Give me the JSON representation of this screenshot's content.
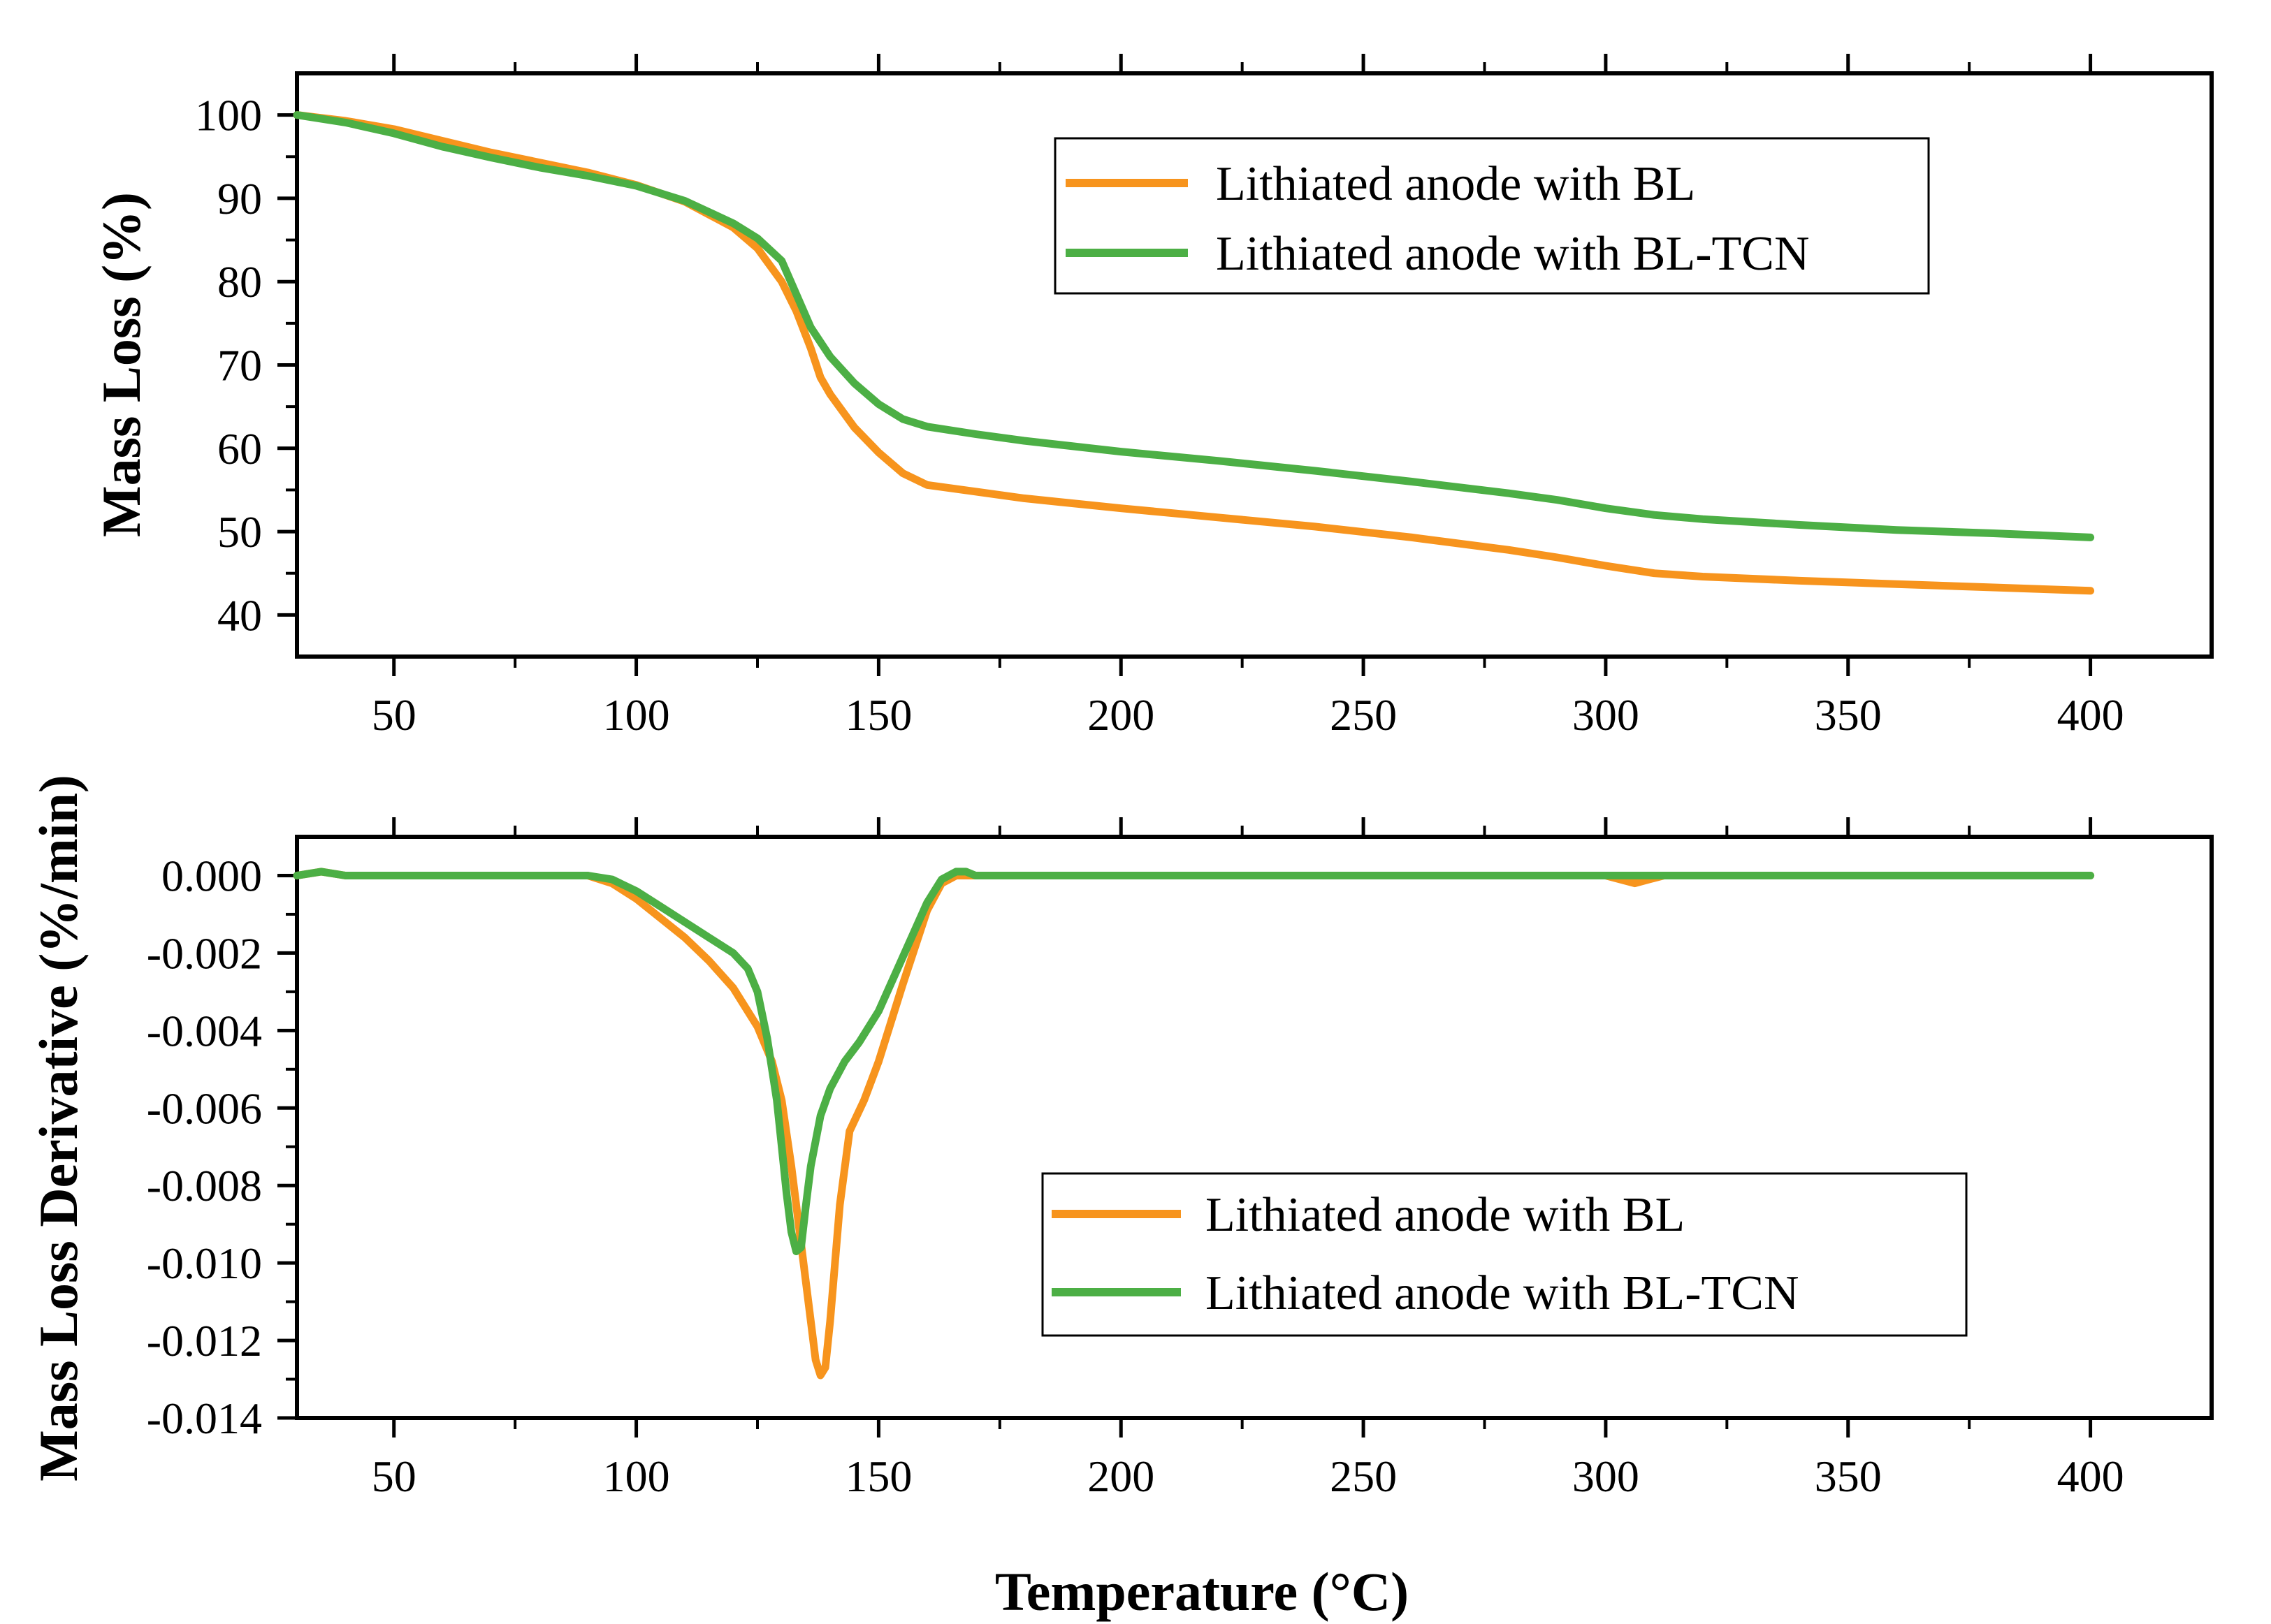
{
  "chart_data": [
    {
      "type": "line",
      "ylabel": "Mass Loss (%)",
      "xlim": [
        30,
        425
      ],
      "ylim": [
        35,
        105
      ],
      "x_ticks": [
        50,
        100,
        150,
        200,
        250,
        300,
        350,
        400
      ],
      "y_ticks": [
        40,
        50,
        60,
        70,
        80,
        90,
        100
      ],
      "legend": "top-right",
      "series": [
        {
          "name": "Lithiated anode with BL",
          "color": "#f7941d",
          "x": [
            30,
            40,
            50,
            60,
            70,
            80,
            90,
            100,
            110,
            120,
            125,
            130,
            133,
            136,
            138,
            140,
            145,
            150,
            155,
            160,
            170,
            180,
            200,
            220,
            240,
            260,
            280,
            290,
            300,
            310,
            320,
            340,
            360,
            380,
            400
          ],
          "y": [
            100,
            99.3,
            98.3,
            96.9,
            95.5,
            94.3,
            93.1,
            91.6,
            89.6,
            86.5,
            84.0,
            80.0,
            76.5,
            72.0,
            68.5,
            66.5,
            62.5,
            59.5,
            57.0,
            55.6,
            54.8,
            54.0,
            52.8,
            51.7,
            50.6,
            49.3,
            47.8,
            46.9,
            45.9,
            45.0,
            44.6,
            44.1,
            43.7,
            43.3,
            42.9
          ]
        },
        {
          "name": "Lithiated anode with BL-TCN",
          "color": "#4caf45",
          "x": [
            30,
            40,
            50,
            60,
            70,
            80,
            90,
            100,
            110,
            120,
            125,
            130,
            133,
            136,
            140,
            145,
            150,
            155,
            160,
            170,
            180,
            200,
            220,
            240,
            260,
            280,
            290,
            300,
            310,
            320,
            340,
            360,
            380,
            400
          ],
          "y": [
            100,
            99.1,
            97.8,
            96.2,
            94.9,
            93.7,
            92.7,
            91.5,
            89.7,
            87.0,
            85.2,
            82.5,
            78.5,
            74.5,
            71.0,
            67.8,
            65.3,
            63.5,
            62.6,
            61.7,
            60.9,
            59.6,
            58.5,
            57.3,
            56.0,
            54.6,
            53.8,
            52.8,
            52.0,
            51.5,
            50.8,
            50.2,
            49.8,
            49.3
          ]
        }
      ]
    },
    {
      "type": "line",
      "ylabel": "Mass Loss Derivative (%/min)",
      "xlabel": "Temperature (°C)",
      "xlim": [
        30,
        425
      ],
      "ylim": [
        -0.014,
        0.001
      ],
      "x_ticks": [
        50,
        100,
        150,
        200,
        250,
        300,
        350,
        400
      ],
      "y_ticks": [
        0,
        -0.002,
        -0.004,
        -0.006,
        -0.008,
        -0.01,
        -0.012,
        -0.014
      ],
      "y_tick_labels": [
        "0.000",
        "-0.002",
        "-0.004",
        "-0.006",
        "-0.008",
        "-0.010",
        "-0.012",
        "-0.014"
      ],
      "legend": "bottom-right",
      "series": [
        {
          "name": "Lithiated anode with BL",
          "color": "#f7941d",
          "x": [
            30,
            35,
            40,
            50,
            60,
            70,
            80,
            90,
            95,
            100,
            105,
            110,
            115,
            120,
            125,
            128,
            130,
            132,
            134,
            136,
            137,
            138,
            139,
            140,
            142,
            144,
            147,
            150,
            155,
            160,
            163,
            166,
            170,
            180,
            200,
            250,
            300,
            303,
            306,
            309,
            312,
            320,
            350,
            400
          ],
          "y": [
            0,
            0.0001,
            0,
            0,
            0,
            0,
            0,
            0,
            -0.0002,
            -0.0006,
            -0.0011,
            -0.0016,
            -0.0022,
            -0.0029,
            -0.0039,
            -0.0048,
            -0.0058,
            -0.0075,
            -0.0095,
            -0.0115,
            -0.0125,
            -0.0129,
            -0.0127,
            -0.0115,
            -0.0085,
            -0.0066,
            -0.0058,
            -0.0048,
            -0.0028,
            -0.0009,
            -0.0002,
            0,
            0,
            0,
            0,
            0,
            0,
            -0.0001,
            -0.0002,
            -0.0001,
            0,
            0,
            0,
            0
          ]
        },
        {
          "name": "Lithiated anode with BL-TCN",
          "color": "#4caf45",
          "x": [
            30,
            35,
            40,
            50,
            60,
            70,
            80,
            90,
            95,
            100,
            105,
            110,
            115,
            120,
            123,
            125,
            127,
            129,
            130,
            131,
            132,
            133,
            134,
            135,
            136,
            138,
            140,
            143,
            146,
            150,
            155,
            160,
            163,
            166,
            168,
            170,
            175,
            180,
            200,
            250,
            300,
            350,
            400
          ],
          "y": [
            0,
            0.0001,
            0,
            0,
            0,
            0,
            0,
            0,
            -0.0001,
            -0.0004,
            -0.0008,
            -0.0012,
            -0.0016,
            -0.002,
            -0.0024,
            -0.003,
            -0.0042,
            -0.0058,
            -0.007,
            -0.0082,
            -0.0092,
            -0.0097,
            -0.0096,
            -0.0085,
            -0.0075,
            -0.0062,
            -0.0055,
            -0.0048,
            -0.0043,
            -0.0035,
            -0.0021,
            -0.0007,
            -0.0001,
            0.0001,
            0.0001,
            0,
            0,
            0,
            0,
            0,
            0,
            0,
            0
          ]
        }
      ]
    }
  ]
}
